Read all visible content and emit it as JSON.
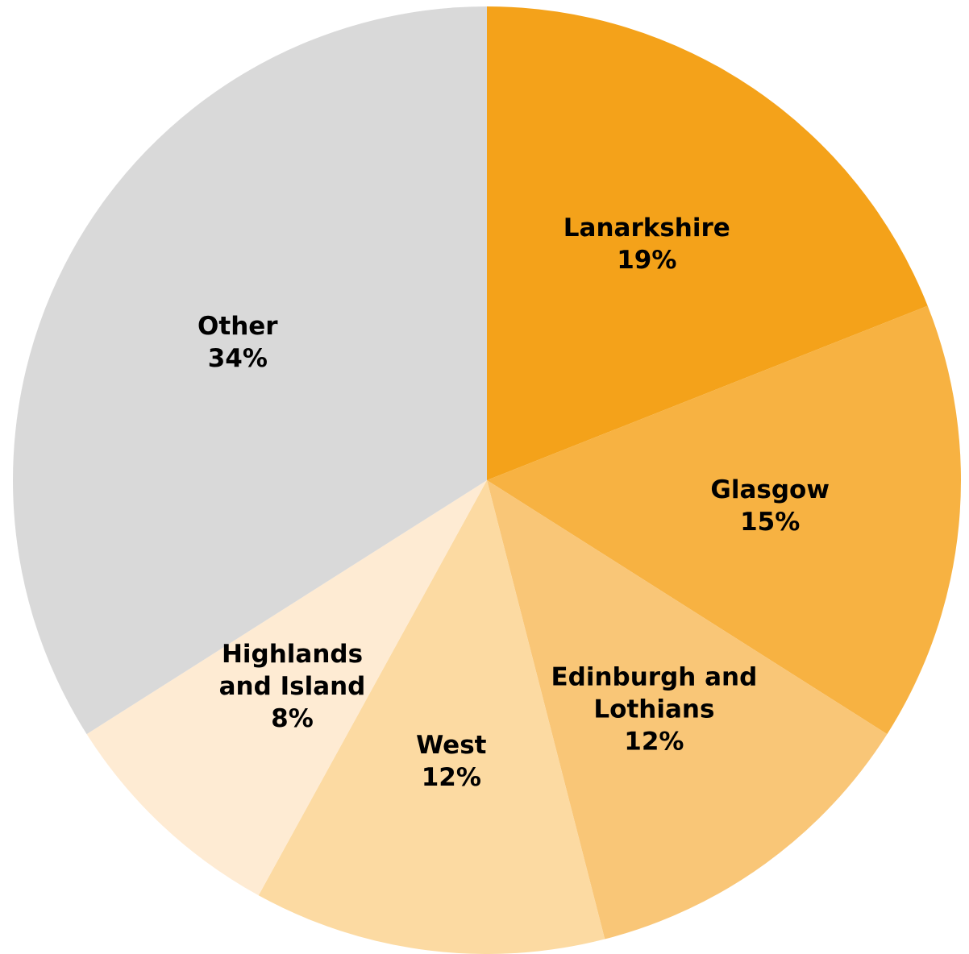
{
  "chart_data": {
    "type": "pie",
    "title": "",
    "start": "12 o'clock",
    "direction": "clockwise",
    "slices": [
      {
        "label": [
          "Lanarkshire"
        ],
        "value": 19,
        "value_label": "19%",
        "color": "#F4A21A"
      },
      {
        "label": [
          "Glasgow"
        ],
        "value": 15,
        "value_label": "15%",
        "color": "#F7B242"
      },
      {
        "label": [
          "Edinburgh and",
          "Lothians"
        ],
        "value": 12,
        "value_label": "12%",
        "color": "#F9C677"
      },
      {
        "label": [
          "West"
        ],
        "value": 12,
        "value_label": "12%",
        "color": "#FCDAA2"
      },
      {
        "label": [
          "Highlands",
          "and Island"
        ],
        "value": 8,
        "value_label": "8%",
        "color": "#FEEBD3"
      },
      {
        "label": [
          "Other"
        ],
        "value": 34,
        "value_label": "34%",
        "color": "#D9D9D9"
      }
    ]
  }
}
